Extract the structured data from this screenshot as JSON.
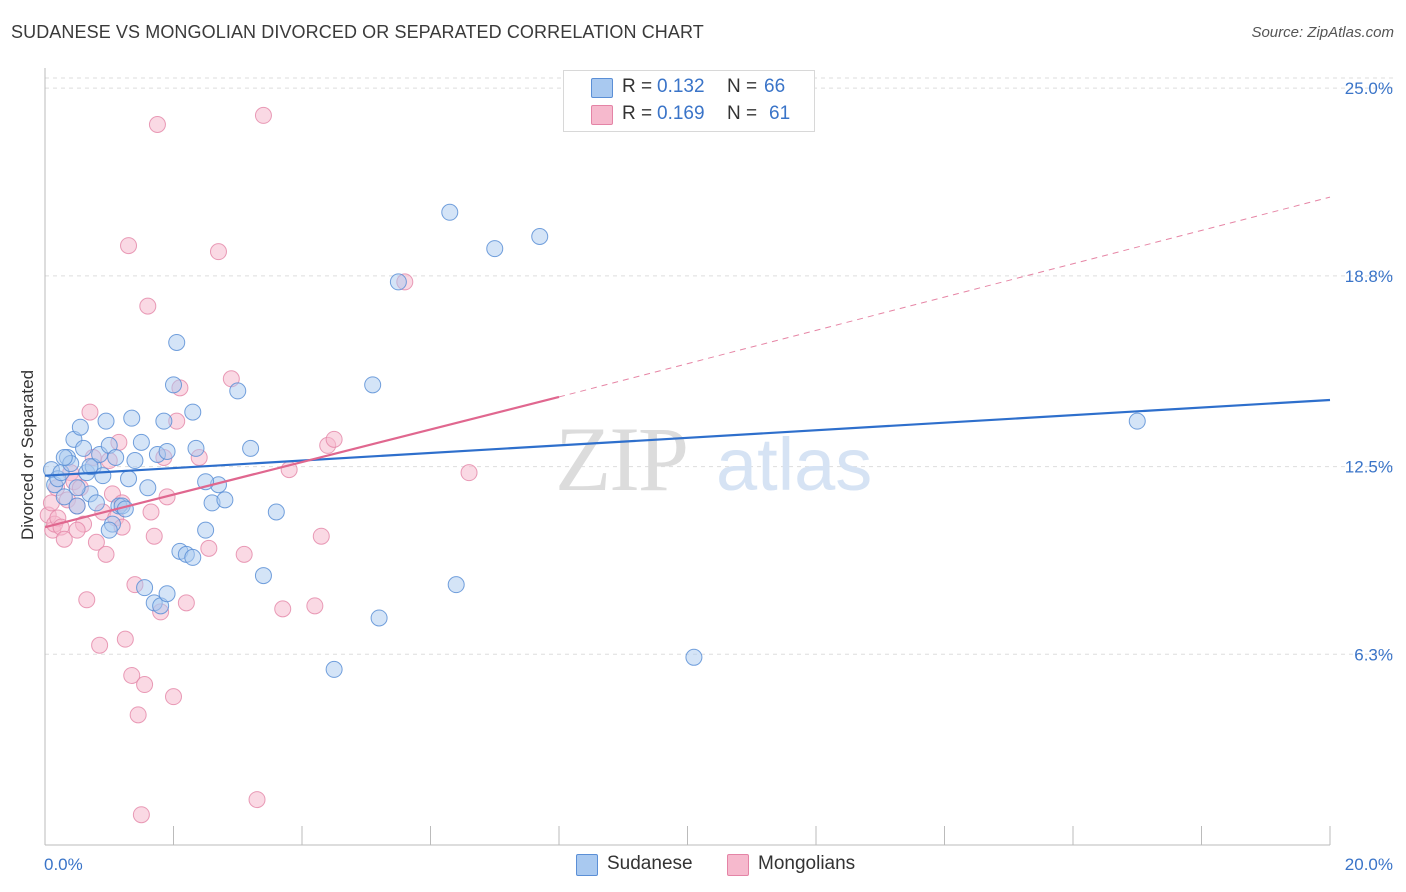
{
  "header": {
    "title": "SUDANESE VS MONGOLIAN DIVORCED OR SEPARATED CORRELATION CHART",
    "source": "Source: ZipAtlas.com"
  },
  "watermark": {
    "zip": "ZIP",
    "atlas": "atlas"
  },
  "legend": {
    "rows": [
      {
        "r_label": "R =",
        "r_value": "0.132",
        "n_label": "N =",
        "n_value": "66"
      },
      {
        "r_label": "R =",
        "r_value": "0.169",
        "n_label": "N =",
        "n_value": "61"
      }
    ],
    "bottom": [
      "Sudanese",
      "Mongolians"
    ]
  },
  "colors": {
    "sudanese_fill": "#a9c9f0",
    "sudanese_stroke": "#5b8fd6",
    "sudanese_line": "#2e6fcc",
    "mongolian_fill": "#f6b9cd",
    "mongolian_stroke": "#e484a6",
    "mongolian_line": "#e0678f",
    "axis_label": "#3a74c8",
    "grid": "#dddddd"
  },
  "chart_data": {
    "type": "scatter",
    "title": "SUDANESE VS MONGOLIAN DIVORCED OR SEPARATED CORRELATION CHART",
    "xlabel": "",
    "ylabel": "Divorced or Separated",
    "xlim": [
      0,
      20
    ],
    "ylim": [
      0,
      25.6
    ],
    "x_tick_labels": [
      "0.0%",
      "20.0%"
    ],
    "y_ticks": [
      6.3,
      12.5,
      18.8,
      25.0
    ],
    "y_tick_labels": [
      "6.3%",
      "12.5%",
      "18.8%",
      "25.0%"
    ],
    "grid": true,
    "legend_position": "top-center",
    "series": [
      {
        "name": "Sudanese",
        "r": 0.132,
        "n": 66,
        "trend": {
          "x0": 0.0,
          "y0": 12.2,
          "x1": 20.0,
          "y1": 14.7
        },
        "points": [
          [
            0.1,
            12.4
          ],
          [
            0.15,
            11.9
          ],
          [
            0.2,
            12.1
          ],
          [
            0.25,
            12.3
          ],
          [
            0.3,
            11.5
          ],
          [
            0.35,
            12.8
          ],
          [
            0.4,
            12.6
          ],
          [
            0.45,
            13.4
          ],
          [
            0.5,
            11.2
          ],
          [
            0.55,
            13.8
          ],
          [
            0.6,
            13.1
          ],
          [
            0.65,
            12.3
          ],
          [
            0.7,
            11.6
          ],
          [
            0.75,
            12.5
          ],
          [
            0.8,
            11.3
          ],
          [
            0.85,
            12.9
          ],
          [
            0.9,
            12.2
          ],
          [
            0.95,
            14.0
          ],
          [
            1.0,
            13.2
          ],
          [
            1.05,
            10.6
          ],
          [
            1.1,
            12.8
          ],
          [
            1.15,
            11.2
          ],
          [
            1.2,
            11.2
          ],
          [
            1.3,
            12.1
          ],
          [
            1.35,
            14.1
          ],
          [
            1.4,
            12.7
          ],
          [
            1.5,
            13.3
          ],
          [
            1.55,
            8.5
          ],
          [
            1.6,
            11.8
          ],
          [
            1.7,
            8.0
          ],
          [
            1.75,
            12.9
          ],
          [
            1.8,
            7.9
          ],
          [
            1.85,
            14.0
          ],
          [
            1.9,
            8.3
          ],
          [
            2.0,
            15.2
          ],
          [
            2.05,
            16.6
          ],
          [
            2.1,
            9.7
          ],
          [
            2.2,
            9.6
          ],
          [
            2.3,
            14.3
          ],
          [
            2.35,
            13.1
          ],
          [
            2.5,
            10.4
          ],
          [
            2.6,
            11.3
          ],
          [
            2.7,
            11.9
          ],
          [
            2.8,
            11.4
          ],
          [
            3.0,
            15.0
          ],
          [
            3.2,
            13.1
          ],
          [
            3.4,
            8.9
          ],
          [
            3.6,
            11.0
          ],
          [
            4.5,
            5.8
          ],
          [
            5.1,
            15.2
          ],
          [
            5.2,
            7.5
          ],
          [
            5.5,
            18.6
          ],
          [
            6.3,
            20.9
          ],
          [
            6.4,
            8.6
          ],
          [
            7.0,
            19.7
          ],
          [
            7.7,
            20.1
          ],
          [
            10.1,
            6.2
          ],
          [
            17.0,
            14.0
          ],
          [
            0.3,
            12.8
          ],
          [
            0.5,
            11.8
          ],
          [
            0.7,
            12.5
          ],
          [
            1.0,
            10.4
          ],
          [
            1.25,
            11.1
          ],
          [
            1.9,
            13.0
          ],
          [
            2.3,
            9.5
          ],
          [
            2.5,
            12.0
          ]
        ]
      },
      {
        "name": "Mongolians",
        "r": 0.169,
        "n": 61,
        "trend": {
          "x0": 0.0,
          "y0": 10.5,
          "x1": 8.0,
          "y1": 14.8
        },
        "trend_extension": {
          "x0": 8.0,
          "y0": 14.8,
          "x1": 20.0,
          "y1": 21.4
        },
        "points": [
          [
            0.05,
            10.9
          ],
          [
            0.1,
            11.3
          ],
          [
            0.12,
            10.4
          ],
          [
            0.15,
            10.6
          ],
          [
            0.18,
            11.8
          ],
          [
            0.2,
            10.8
          ],
          [
            0.25,
            10.5
          ],
          [
            0.3,
            10.1
          ],
          [
            0.35,
            11.4
          ],
          [
            0.4,
            12.3
          ],
          [
            0.45,
            12.0
          ],
          [
            0.5,
            11.2
          ],
          [
            0.55,
            11.8
          ],
          [
            0.6,
            10.6
          ],
          [
            0.65,
            8.1
          ],
          [
            0.7,
            14.3
          ],
          [
            0.75,
            12.8
          ],
          [
            0.8,
            10.0
          ],
          [
            0.85,
            6.6
          ],
          [
            0.9,
            11.0
          ],
          [
            0.95,
            9.6
          ],
          [
            1.0,
            12.7
          ],
          [
            1.05,
            11.6
          ],
          [
            1.1,
            10.8
          ],
          [
            1.15,
            13.3
          ],
          [
            1.2,
            10.5
          ],
          [
            1.25,
            6.8
          ],
          [
            1.3,
            19.8
          ],
          [
            1.35,
            5.6
          ],
          [
            1.4,
            8.6
          ],
          [
            1.45,
            4.3
          ],
          [
            1.5,
            1.0
          ],
          [
            1.55,
            5.3
          ],
          [
            1.6,
            17.8
          ],
          [
            1.65,
            11.0
          ],
          [
            1.7,
            10.2
          ],
          [
            1.75,
            23.8
          ],
          [
            1.8,
            7.7
          ],
          [
            1.85,
            12.8
          ],
          [
            1.9,
            11.5
          ],
          [
            2.0,
            4.9
          ],
          [
            2.05,
            14.0
          ],
          [
            2.1,
            15.1
          ],
          [
            2.2,
            8.0
          ],
          [
            2.4,
            12.8
          ],
          [
            2.55,
            9.8
          ],
          [
            2.7,
            19.6
          ],
          [
            2.9,
            15.4
          ],
          [
            3.1,
            9.6
          ],
          [
            3.3,
            1.5
          ],
          [
            3.4,
            24.1
          ],
          [
            3.7,
            7.8
          ],
          [
            3.8,
            12.4
          ],
          [
            4.2,
            7.9
          ],
          [
            4.3,
            10.2
          ],
          [
            4.4,
            13.2
          ],
          [
            4.5,
            13.4
          ],
          [
            5.6,
            18.6
          ],
          [
            6.6,
            12.3
          ],
          [
            0.5,
            10.4
          ],
          [
            1.2,
            11.3
          ]
        ]
      }
    ]
  }
}
